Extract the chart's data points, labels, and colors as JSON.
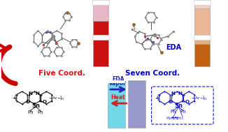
{
  "bg_color": "#ffffff",
  "five_coord_label": "Five Coord.",
  "seven_coord_label": "Seven Coord.",
  "eda_vapor_label": "EDA\nvapor",
  "heat_label": "Heat",
  "eda_label": "EDA",
  "five_coord_color": "#dd1111",
  "seven_coord_color": "#0000cc",
  "eda_label_color": "#0000cc",
  "vial_tl_top": "#e8b8c8",
  "vial_tl_bot": "#cc1111",
  "vial_tr_top": "#e8b898",
  "vial_tr_mid": "#e09050",
  "vial_tr_bot": "#c06010",
  "film_left_color": "#70d8e8",
  "film_right_color": "#9898cc",
  "arrow_right_color": "#2222bb",
  "arrow_left_color": "#cc2222",
  "red_arrow_color": "#cc0000",
  "mol_bond_color": "#555555",
  "mol_gray": "#888888",
  "mol_blue": "#5555aa",
  "mol_red": "#cc3333",
  "mol_brown": "#996633",
  "struct_black": "#111111",
  "struct_blue": "#1111cc"
}
